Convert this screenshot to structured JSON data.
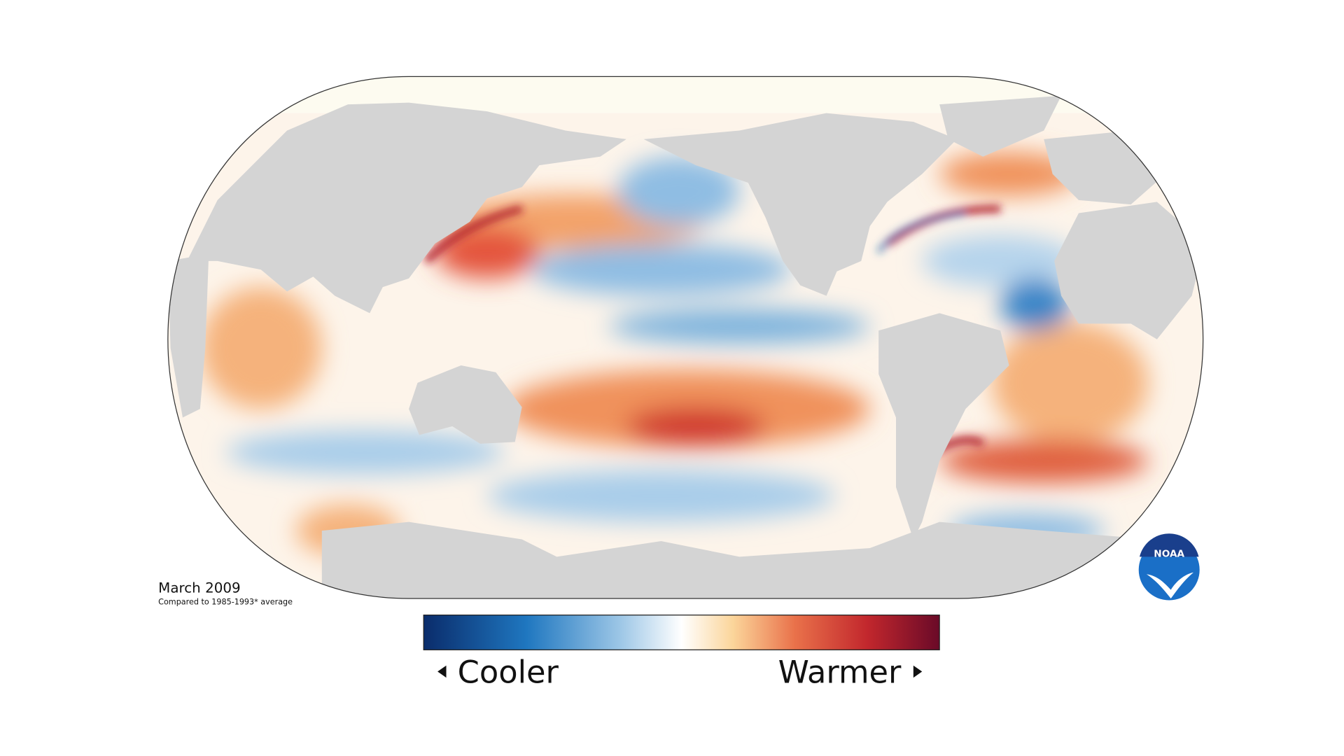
{
  "date": "March 2009",
  "subtitle": "Compared to 1985-1993* average",
  "legend": {
    "low": "Cooler",
    "high": "Warmer"
  },
  "logo": "NOAA"
}
